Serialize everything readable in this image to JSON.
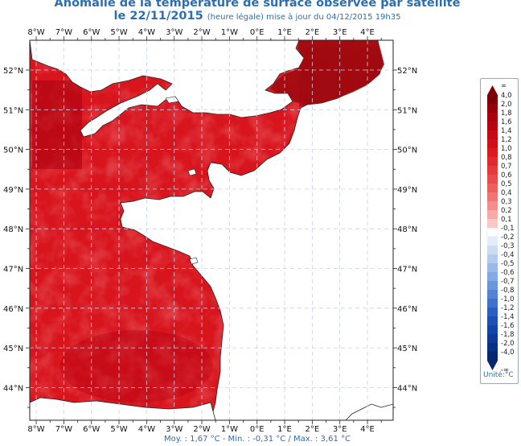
{
  "title": {
    "line1": "Anomalie de la température de surface observée par satellite",
    "date": "le 22/11/2015",
    "detail": "(heure légale) mise à jour du 04/12/2015 19h35"
  },
  "stats": {
    "text": "Moy. : 1,67 °C   -   Min. : -0,31 °C / Max. : 3,61 °C"
  },
  "map": {
    "lon_labels": [
      "8°W",
      "7°W",
      "6°W",
      "5°W",
      "4°W",
      "3°W",
      "2°W",
      "1°W",
      "0°E",
      "1°E",
      "2°E",
      "3°E",
      "4°E"
    ],
    "lat_labels": [
      "52°N",
      "51°N",
      "50°N",
      "49°N",
      "48°N",
      "47°N",
      "46°N",
      "45°N",
      "44°N"
    ],
    "lon_values": [
      -8,
      -7,
      -6,
      -5,
      -4,
      -3,
      -2,
      -1,
      0,
      1,
      2,
      3,
      4
    ],
    "lat_values": [
      52,
      51,
      50,
      49,
      48,
      47,
      46,
      45,
      44
    ],
    "sea_color": "#d8141d",
    "land_color": "#ffffff"
  },
  "legend": {
    "top_symbol": "∞",
    "bottom_symbol": "-∞",
    "unit": "Unité:°C",
    "levels": [
      "4,0",
      "2,0",
      "1,8",
      "1,6",
      "1,4",
      "1,2",
      "1,0",
      "0,8",
      "0,7",
      "0,6",
      "0,5",
      "0,4",
      "0,3",
      "0,2",
      "0,1",
      "-0,1",
      "-0,2",
      "-0,3",
      "-0,4",
      "-0,5",
      "-0,6",
      "-0,7",
      "-0,8",
      "-1,0",
      "-1,2",
      "-1,4",
      "-1,6",
      "-1,8",
      "-2,0",
      "-4,0"
    ],
    "colors": [
      "#7a0006",
      "#96000a",
      "#a8000e",
      "#b80410",
      "#c40a14",
      "#d01018",
      "#da1a20",
      "#e02a2e",
      "#e43a3c",
      "#e84c4c",
      "#ec605e",
      "#f07674",
      "#f48e8c",
      "#f8aaa8",
      "#fcc8c6",
      "#ffffff",
      "#e4ecf8",
      "#cddcf2",
      "#b4cbec",
      "#9bb9e6",
      "#84a8e0",
      "#6c96da",
      "#5584d2",
      "#3f72ca",
      "#2c60c0",
      "#1e50b4",
      "#1444a6",
      "#0c3a96",
      "#083082",
      "#06286e"
    ]
  }
}
